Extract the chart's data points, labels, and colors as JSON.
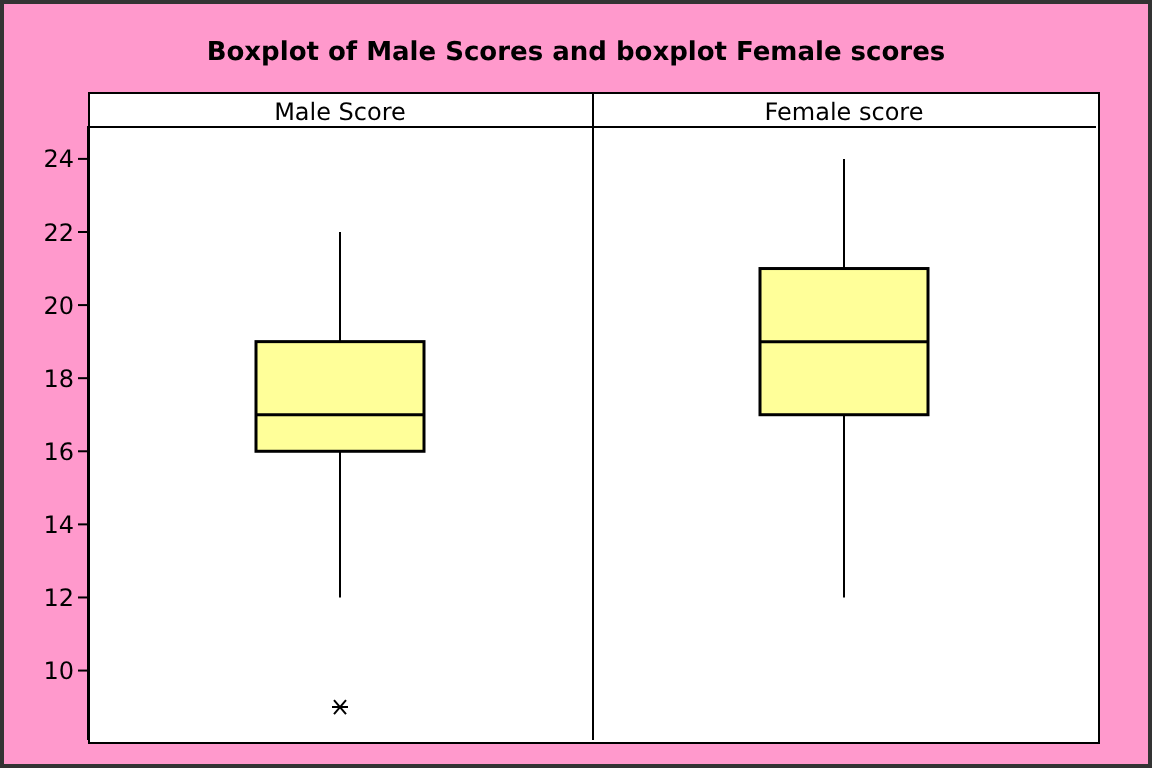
{
  "chart_data": {
    "type": "box",
    "title": "Boxplot of Male Scores and boxplot Female scores",
    "categories": [
      "Male Score",
      "Female score"
    ],
    "color": "#ffff99",
    "boxes": [
      {
        "low": 12,
        "q1": 16,
        "median": 17,
        "q3": 19,
        "high": 22,
        "outliers": [
          9
        ]
      },
      {
        "low": 12,
        "q1": 17,
        "median": 19,
        "q3": 21,
        "high": 24
      }
    ],
    "ylim": [
      8.1,
      24.9
    ],
    "yticks": [
      10,
      12,
      14,
      16,
      18,
      20,
      22,
      24
    ],
    "grid": false,
    "legend": false
  }
}
